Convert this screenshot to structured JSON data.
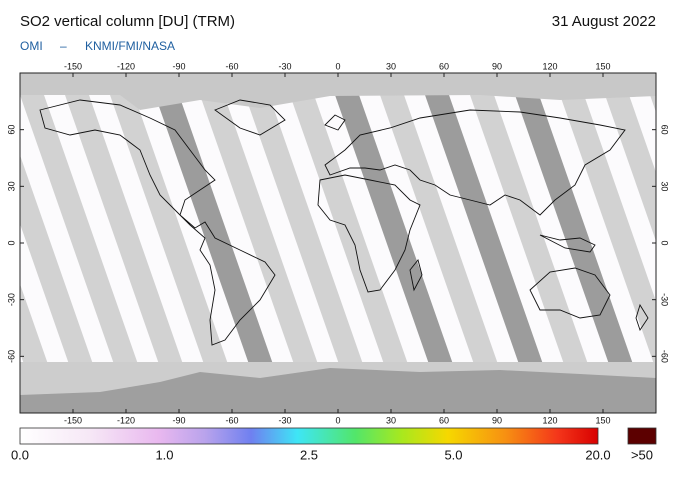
{
  "header": {
    "title": "SO2 vertical column [DU] (TRM)",
    "date": "31 August 2022",
    "source_left": "OMI",
    "separator": "–",
    "source_right": "KNMI/FMI/NASA"
  },
  "map": {
    "lon_ticks_top": [
      -150,
      -120,
      -90,
      -60,
      -30,
      0,
      30,
      60,
      90,
      120,
      150
    ],
    "lon_ticks_bottom": [
      -150,
      -120,
      -90,
      -60,
      -30,
      0,
      30,
      60,
      90,
      120,
      150
    ],
    "lat_ticks_left": [
      60,
      30,
      0,
      -30,
      -60
    ],
    "lat_ticks_right": [
      60,
      30,
      0,
      -30,
      -60
    ]
  },
  "colorbar": {
    "labels": [
      "0.0",
      "1.0",
      "2.5",
      "5.0",
      "20.0"
    ],
    "overflow_label": ">50"
  }
}
